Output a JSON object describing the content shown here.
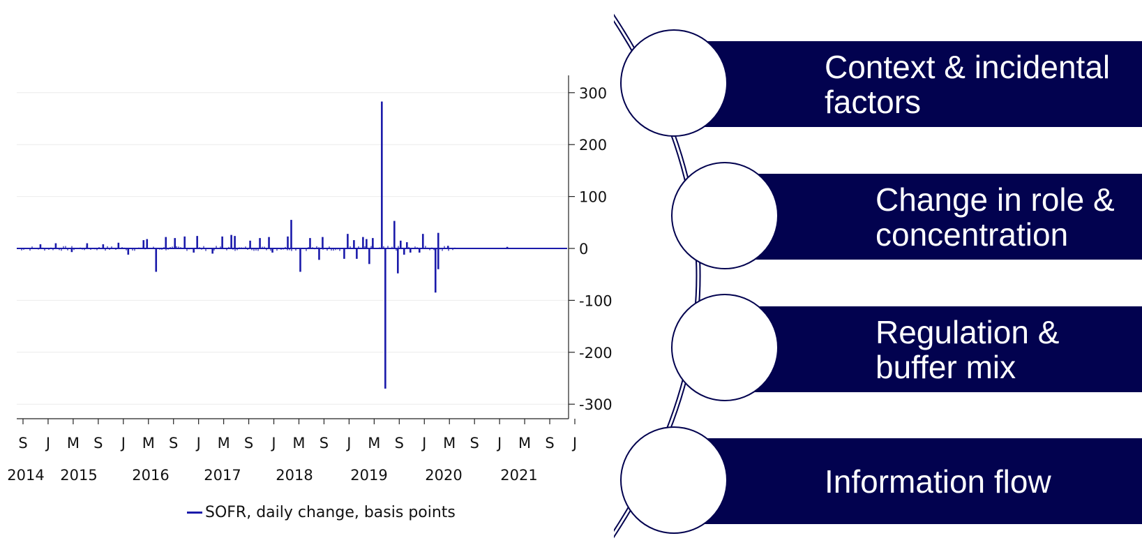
{
  "chart_data": {
    "type": "bar",
    "x_axis_months": [
      "S",
      "J",
      "M",
      "S",
      "J",
      "M",
      "S",
      "J",
      "M",
      "S",
      "J",
      "M",
      "S",
      "J",
      "M",
      "S",
      "J",
      "M",
      "S",
      "J",
      "M",
      "S",
      "J"
    ],
    "x_axis_years": [
      "2014",
      "2015",
      "2016",
      "2017",
      "2018",
      "2019",
      "2020",
      "2021"
    ],
    "y_ticks": [
      "300",
      "200",
      "100",
      "0",
      "-100",
      "-200",
      "-300"
    ],
    "ylim": [
      -300,
      300
    ],
    "xlim": [
      "2014-08",
      "2021-12"
    ],
    "y_axis_position": "right",
    "grid": "horizontal",
    "legend_position": "bottom",
    "series": [
      {
        "name": "SOFR, daily change, basis points",
        "x": [
          "2014-12",
          "2015-02",
          "2015-05",
          "2015-07",
          "2015-10",
          "2015-12",
          "2016-02",
          "2016-04",
          "2016-05",
          "2016-06",
          "2016-08",
          "2016-09",
          "2016-11",
          "2016-12",
          "2017-01",
          "2017-03",
          "2017-05",
          "2017-06",
          "2017-07",
          "2017-09",
          "2017-11",
          "2017-12",
          "2018-01",
          "2018-03",
          "2018-04",
          "2018-05",
          "2018-07",
          "2018-08",
          "2018-09",
          "2018-12",
          "2019-01",
          "2019-02",
          "2019-02",
          "2019-03",
          "2019-04",
          "2019-04",
          "2019-05",
          "2019-06",
          "2019-07",
          "2019-08",
          "2019-09",
          "2019-09",
          "2019-10",
          "2019-10",
          "2019-11",
          "2019-12",
          "2020-01",
          "2020-03",
          "2020-03",
          "2020-03",
          "2020-05",
          "2021-02"
        ],
        "values": [
          8,
          10,
          -7,
          10,
          8,
          11,
          -12,
          16,
          18,
          -45,
          22,
          20,
          23,
          -8,
          24,
          -10,
          23,
          26,
          24,
          15,
          20,
          22,
          -8,
          23,
          55,
          -45,
          20,
          -22,
          22,
          -20,
          28,
          -20,
          16,
          22,
          18,
          -30,
          20,
          283,
          -270,
          53,
          -48,
          15,
          -12,
          12,
          -8,
          -8,
          28,
          -40,
          -85,
          30,
          5,
          3
        ],
        "color": "#1a1aaa"
      }
    ]
  },
  "diagram": {
    "color": "#02024f",
    "items": [
      {
        "label": "Context & incidental factors"
      },
      {
        "label": "Change in role & concentration"
      },
      {
        "label": "Regulation & buffer mix"
      },
      {
        "label": "Information flow"
      }
    ]
  }
}
